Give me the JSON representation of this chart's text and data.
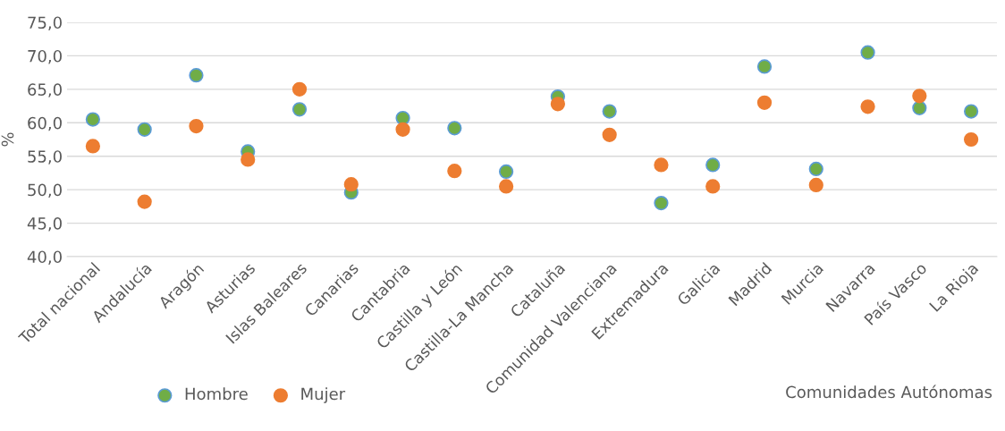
{
  "chart_data": {
    "type": "scatter",
    "xlabel": "Comunidades Autónomas",
    "ylabel": "%",
    "categories": [
      "Total nacional",
      "Andalucía",
      "Aragón",
      "Asturias",
      "Islas Baleares",
      "Canarias",
      "Cantabria",
      "Castilla y León",
      "Castilla-La Mancha",
      "Cataluña",
      "Comunidad Valenciana",
      "Extremadura",
      "Galicia",
      "Madrid",
      "Murcia",
      "Navarra",
      "País Vasco",
      "La Rioja"
    ],
    "series": [
      {
        "name": "Hombre",
        "color": "#70ad47",
        "values": [
          60.5,
          59.0,
          67.1,
          55.7,
          62.0,
          49.6,
          60.7,
          59.2,
          52.7,
          63.9,
          61.7,
          48.0,
          53.7,
          68.4,
          53.1,
          70.5,
          62.2,
          61.7
        ]
      },
      {
        "name": "Mujer",
        "color": "#ed7d31",
        "values": [
          56.5,
          48.2,
          59.5,
          54.5,
          65.0,
          50.8,
          59.0,
          52.8,
          50.5,
          62.8,
          58.2,
          53.7,
          50.5,
          63.0,
          50.7,
          62.4,
          64.0,
          57.5
        ]
      }
    ],
    "ylim": [
      40,
      75
    ],
    "yticks": [
      {
        "value": 40,
        "label": "40,0"
      },
      {
        "value": 45,
        "label": "45,0"
      },
      {
        "value": 50,
        "label": "50,0"
      },
      {
        "value": 55,
        "label": "55,0"
      },
      {
        "value": 60,
        "label": "60,0"
      },
      {
        "value": 65,
        "label": "65,0"
      },
      {
        "value": 70,
        "label": "70,0"
      },
      {
        "value": 75,
        "label": "75,0"
      }
    ],
    "grid": "y",
    "legend": "bottom left",
    "marker": "circle"
  }
}
